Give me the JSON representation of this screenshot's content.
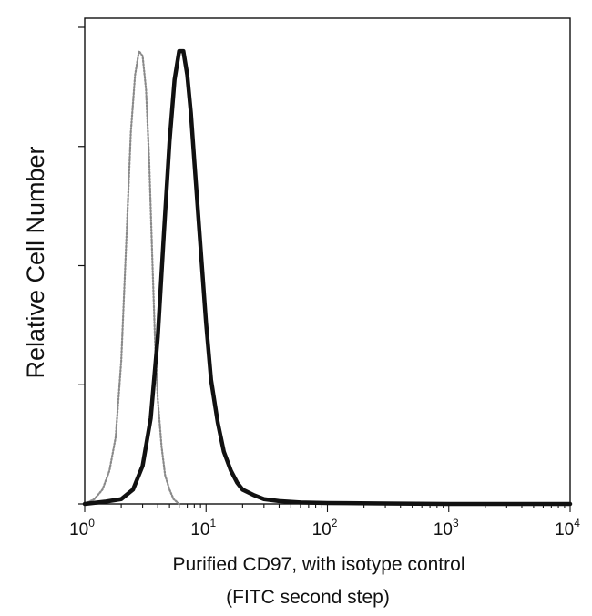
{
  "chart_data": {
    "type": "line",
    "title": "",
    "ylabel": "Relative Cell Number",
    "xlabel": "Purified CD97, with isotype control",
    "xlabel2": "(FITC second step)",
    "x_scale": "log",
    "xlim": [
      1,
      10000
    ],
    "ylim": [
      0,
      1
    ],
    "x_ticks": [
      {
        "base": "10",
        "exp": "0"
      },
      {
        "base": "10",
        "exp": "1"
      },
      {
        "base": "10",
        "exp": "2"
      },
      {
        "base": "10",
        "exp": "3"
      },
      {
        "base": "10",
        "exp": "4"
      }
    ],
    "y_ticks": [
      0,
      0.25,
      0.5,
      0.75,
      1
    ],
    "grid": false,
    "legend": "none",
    "series": [
      {
        "style": "dotted-gray",
        "color": "#8a8a8a",
        "x": [
          1.0,
          1.2,
          1.4,
          1.6,
          1.8,
          2.0,
          2.2,
          2.4,
          2.6,
          2.8,
          3.0,
          3.2,
          3.4,
          3.6,
          3.8,
          4.0,
          4.3,
          4.6,
          5.0,
          5.4,
          6.0
        ],
        "y": [
          0.0,
          0.01,
          0.03,
          0.07,
          0.14,
          0.3,
          0.55,
          0.78,
          0.9,
          0.95,
          0.94,
          0.87,
          0.72,
          0.52,
          0.34,
          0.22,
          0.12,
          0.06,
          0.03,
          0.01,
          0.0
        ]
      },
      {
        "style": "solid-black",
        "color": "#111111",
        "x": [
          1.0,
          1.5,
          2.0,
          2.5,
          3.0,
          3.5,
          4.0,
          4.5,
          5.0,
          5.5,
          6.0,
          6.5,
          7.0,
          7.5,
          8.0,
          9.0,
          10.0,
          11.0,
          12.5,
          14.0,
          16.0,
          18.0,
          20.0,
          25.0,
          30.0,
          40.0,
          60.0,
          100.0,
          300.0,
          1000.0,
          10000.0
        ],
        "y": [
          0.0,
          0.005,
          0.01,
          0.03,
          0.08,
          0.18,
          0.35,
          0.57,
          0.76,
          0.89,
          0.95,
          0.95,
          0.9,
          0.82,
          0.72,
          0.54,
          0.38,
          0.26,
          0.17,
          0.11,
          0.07,
          0.045,
          0.03,
          0.018,
          0.01,
          0.006,
          0.003,
          0.002,
          0.001,
          0.0,
          0.0
        ]
      }
    ]
  }
}
